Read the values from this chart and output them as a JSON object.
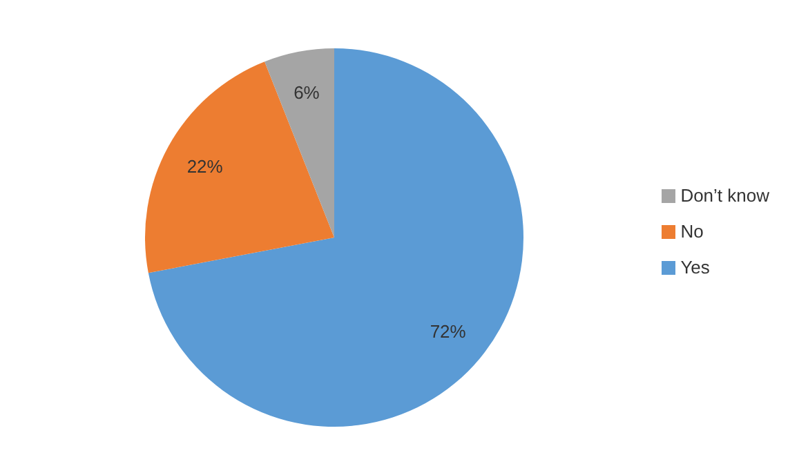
{
  "chart_data": {
    "type": "pie",
    "categories": [
      "Yes",
      "No",
      "Don’t know"
    ],
    "values": [
      72,
      22,
      6
    ],
    "colors": [
      "#5b9bd5",
      "#ed7d31",
      "#a5a5a5"
    ],
    "value_labels": [
      "72%",
      "22%",
      "6%"
    ],
    "legend": "right"
  }
}
